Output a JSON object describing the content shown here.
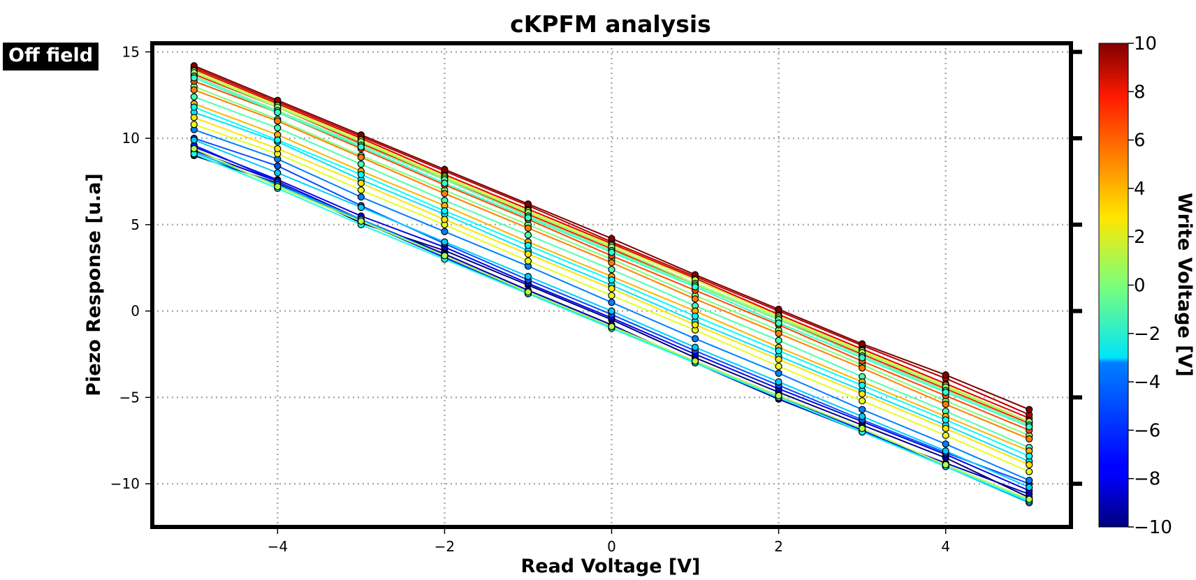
{
  "tag": "Off field",
  "colorbar": {
    "label": "Write Voltage [V]",
    "range": [
      -10,
      10
    ],
    "ticks": [
      10,
      8,
      6,
      4,
      2,
      0,
      -2,
      -4,
      -6,
      -8,
      -10
    ],
    "tick_labels": [
      "10",
      "8",
      "6",
      "4",
      "2",
      "0",
      "−2",
      "−4",
      "−6",
      "−8",
      "−10"
    ],
    "colormap": "jet"
  },
  "chart_data": {
    "type": "line",
    "title": "cKPFM analysis",
    "xlabel": "Read Voltage [V]",
    "ylabel": "Piezo Response [u.a]",
    "xlim": [
      -5.5,
      5.5
    ],
    "ylim": [
      -12.5,
      15.5
    ],
    "xticks": [
      -4,
      -2,
      0,
      2,
      4
    ],
    "xtick_labels": [
      "−4",
      "−2",
      "0",
      "2",
      "4"
    ],
    "yticks": [
      15,
      10,
      5,
      0,
      -5,
      -10
    ],
    "ytick_labels": [
      "15",
      "10",
      "5",
      "0",
      "−5",
      "−10"
    ],
    "grid": true,
    "grid_style": "dotted",
    "x": [
      -5,
      -4,
      -3,
      -2,
      -1,
      0,
      1,
      2,
      3,
      4,
      5
    ],
    "series": [
      {
        "write_voltage": -10,
        "values": [
          9.0,
          7.4,
          5.1,
          3.5,
          1.5,
          -0.5,
          -2.7,
          -4.7,
          -6.6,
          -8.5,
          -10.8
        ]
      },
      {
        "write_voltage": -9,
        "values": [
          9.3,
          7.5,
          5.3,
          3.3,
          1.2,
          -0.8,
          -3.0,
          -5.1,
          -7.0,
          -8.8,
          -10.6
        ]
      },
      {
        "write_voltage": -8,
        "values": [
          9.5,
          7.6,
          5.5,
          3.7,
          1.6,
          -0.4,
          -2.5,
          -4.5,
          -6.4,
          -8.3,
          -10.4
        ]
      },
      {
        "write_voltage": -7,
        "values": [
          9.6,
          7.5,
          5.2,
          3.1,
          1.0,
          -0.9,
          -2.9,
          -4.9,
          -6.9,
          -9.0,
          -11.0
        ]
      },
      {
        "write_voltage": -6,
        "values": [
          10.0,
          8.4,
          6.1,
          3.9,
          1.8,
          -0.2,
          -2.3,
          -4.3,
          -6.3,
          -8.2,
          -10.0
        ]
      },
      {
        "write_voltage": -5,
        "values": [
          10.5,
          8.8,
          6.6,
          4.6,
          2.6,
          0.5,
          -1.6,
          -3.6,
          -5.7,
          -7.7,
          -9.8
        ]
      },
      {
        "write_voltage": -4,
        "values": [
          9.2,
          7.3,
          5.3,
          3.2,
          1.1,
          -0.9,
          -3.0,
          -5.0,
          -7.0,
          -9.0,
          -11.1
        ]
      },
      {
        "write_voltage": -3,
        "values": [
          11.5,
          9.8,
          7.6,
          5.6,
          3.5,
          1.5,
          -0.6,
          -2.6,
          -4.6,
          -6.6,
          -8.7
        ]
      },
      {
        "write_voltage": -2,
        "values": [
          9.1,
          7.1,
          5.0,
          3.0,
          1.0,
          -1.0,
          -3.0,
          -5.0,
          -7.0,
          -9.0,
          -11.0
        ]
      },
      {
        "write_voltage": -1,
        "values": [
          12.4,
          10.6,
          8.5,
          6.4,
          4.4,
          2.4,
          0.3,
          -1.7,
          -3.8,
          -5.8,
          -7.9
        ]
      },
      {
        "write_voltage": 0,
        "values": [
          13.0,
          11.1,
          9.0,
          7.0,
          5.0,
          3.0,
          0.9,
          -1.1,
          -3.1,
          -5.2,
          -7.2
        ]
      },
      {
        "write_voltage": 1,
        "values": [
          9.4,
          7.2,
          5.2,
          3.2,
          1.1,
          -0.9,
          -2.9,
          -4.9,
          -6.8,
          -8.9,
          -10.9
        ]
      },
      {
        "write_voltage": 2,
        "values": [
          10.8,
          9.1,
          7.0,
          5.0,
          2.9,
          0.9,
          -1.1,
          -3.2,
          -5.2,
          -7.2,
          -9.3
        ]
      },
      {
        "write_voltage": 3,
        "values": [
          11.2,
          9.4,
          7.4,
          5.3,
          3.3,
          1.3,
          -0.8,
          -2.8,
          -4.8,
          -6.8,
          -8.9
        ]
      },
      {
        "write_voltage": 4,
        "values": [
          12.0,
          10.2,
          8.1,
          6.1,
          4.0,
          2.0,
          0.0,
          -2.1,
          -4.1,
          -6.1,
          -8.1
        ]
      },
      {
        "write_voltage": 5,
        "values": [
          12.8,
          11.0,
          8.9,
          6.8,
          4.8,
          2.8,
          0.7,
          -1.3,
          -3.3,
          -5.4,
          -7.4
        ]
      },
      {
        "write_voltage": 6,
        "values": [
          13.3,
          11.5,
          9.4,
          7.3,
          5.3,
          3.2,
          1.2,
          -0.8,
          -2.9,
          -4.9,
          -6.9
        ]
      },
      {
        "write_voltage": 7,
        "values": [
          13.7,
          11.8,
          9.7,
          7.7,
          5.6,
          3.6,
          1.5,
          -0.5,
          -2.5,
          -4.5,
          -6.5
        ]
      },
      {
        "write_voltage": 8,
        "values": [
          14.0,
          12.0,
          10.0,
          7.9,
          5.9,
          3.9,
          1.9,
          -0.2,
          -2.2,
          -4.2,
          -6.2
        ]
      },
      {
        "write_voltage": 9,
        "values": [
          14.1,
          12.1,
          10.1,
          8.1,
          6.1,
          4.0,
          2.0,
          0.0,
          -2.0,
          -3.9,
          -6.0
        ]
      },
      {
        "write_voltage": 10,
        "values": [
          14.2,
          12.2,
          10.2,
          8.2,
          6.2,
          4.2,
          2.1,
          0.1,
          -1.9,
          -3.7,
          -5.7
        ]
      },
      {
        "write_voltage": 1.5,
        "values": [
          13.9,
          11.9,
          9.9,
          7.8,
          5.8,
          3.8,
          1.8,
          -0.3,
          -2.3,
          -4.3,
          -6.4
        ]
      },
      {
        "write_voltage": 0.5,
        "values": [
          13.8,
          11.8,
          9.8,
          7.7,
          5.7,
          3.7,
          1.6,
          -0.4,
          -2.4,
          -4.4,
          -6.4
        ]
      },
      {
        "write_voltage": -0.5,
        "values": [
          13.6,
          11.6,
          9.6,
          7.6,
          5.5,
          3.5,
          1.5,
          -0.5,
          -2.6,
          -4.6,
          -6.6
        ]
      },
      {
        "write_voltage": -1.5,
        "values": [
          13.5,
          11.5,
          9.5,
          7.4,
          5.4,
          3.4,
          1.4,
          -0.7,
          -2.7,
          -4.7,
          -6.7
        ]
      },
      {
        "write_voltage": -2.5,
        "values": [
          11.8,
          9.9,
          7.9,
          5.8,
          3.8,
          1.8,
          -0.3,
          -2.3,
          -4.3,
          -6.3,
          -8.4
        ]
      },
      {
        "write_voltage": -3.5,
        "values": [
          9.9,
          8.0,
          6.0,
          4.0,
          2.0,
          0.0,
          -2.1,
          -4.1,
          -6.1,
          -8.1,
          -10.2
        ]
      }
    ]
  }
}
